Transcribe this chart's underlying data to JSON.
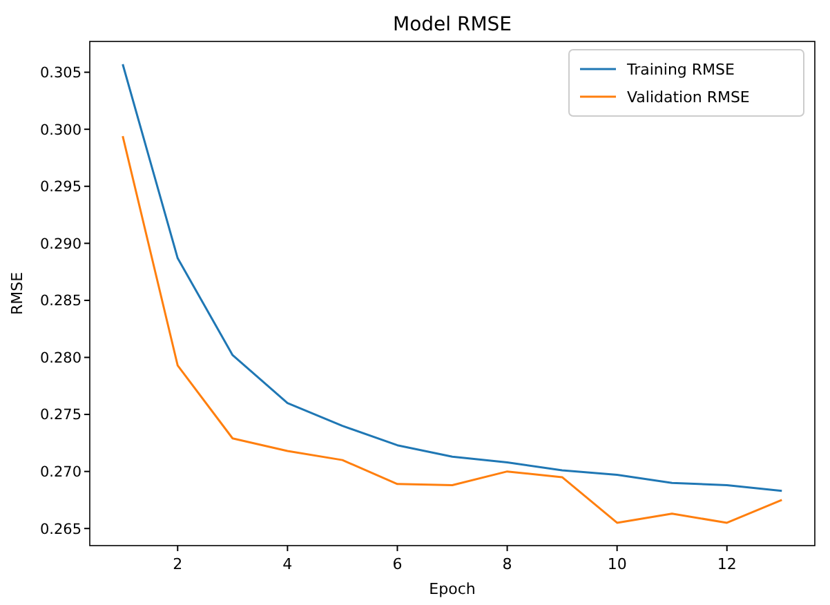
{
  "chart_data": {
    "type": "line",
    "title": "Model RMSE",
    "xlabel": "Epoch",
    "ylabel": "RMSE",
    "x": [
      1,
      2,
      3,
      4,
      5,
      6,
      7,
      8,
      9,
      10,
      11,
      12,
      13
    ],
    "series": [
      {
        "name": "Training RMSE",
        "color": "#1f77b4",
        "values": [
          0.3057,
          0.2887,
          0.2802,
          0.276,
          0.274,
          0.2723,
          0.2713,
          0.2708,
          0.2701,
          0.2697,
          0.269,
          0.2688,
          0.2683
        ]
      },
      {
        "name": "Validation RMSE",
        "color": "#ff7f0e",
        "values": [
          0.2994,
          0.2793,
          0.2729,
          0.2718,
          0.271,
          0.2689,
          0.2688,
          0.27,
          0.2695,
          0.2655,
          0.2663,
          0.2655,
          0.2675
        ]
      }
    ],
    "xlim": [
      0.4,
      13.6
    ],
    "xticks": [
      2,
      4,
      6,
      8,
      10,
      12
    ],
    "ylim": [
      0.2635,
      0.3077
    ],
    "yticks": [
      {
        "value": 0.265,
        "label": "0.265"
      },
      {
        "value": 0.27,
        "label": "0.270"
      },
      {
        "value": 0.275,
        "label": "0.275"
      },
      {
        "value": 0.28,
        "label": "0.280"
      },
      {
        "value": 0.285,
        "label": "0.285"
      },
      {
        "value": 0.29,
        "label": "0.290"
      },
      {
        "value": 0.295,
        "label": "0.295"
      },
      {
        "value": 0.3,
        "label": "0.300"
      },
      {
        "value": 0.305,
        "label": "0.305"
      }
    ],
    "legend": "top right",
    "grid": false,
    "marker": "none",
    "line_style": "solid"
  }
}
